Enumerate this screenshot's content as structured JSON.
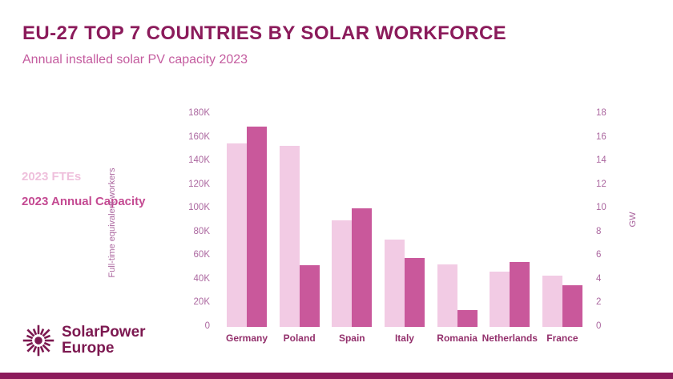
{
  "header": {
    "title": "EU-27 TOP 7 COUNTRIES BY SOLAR WORKFORCE",
    "subtitle": "Annual installed solar PV capacity 2023"
  },
  "legend": {
    "fte_label": "2023 FTEs",
    "capacity_label": "2023 Annual Capacity"
  },
  "logo": {
    "line1": "SolarPower",
    "line2": "Europe"
  },
  "colors": {
    "title": "#8B1B5B",
    "subtitle": "#C45C9F",
    "fte_bar": "#F2CBE4",
    "capacity_bar": "#C9589B",
    "axis_text": "#AC68A0",
    "category_text": "#93306C",
    "logo": "#7C1850",
    "footer_bar": "#8B1B5B",
    "background": "#FFFFFF"
  },
  "chart_data": {
    "type": "bar",
    "title": "EU-27 TOP 7 COUNTRIES BY SOLAR WORKFORCE",
    "subtitle": "Annual installed solar PV capacity 2023",
    "categories": [
      "Germany",
      "Poland",
      "Spain",
      "Italy",
      "Romania",
      "Netherlands",
      "France"
    ],
    "series": [
      {
        "name": "2023 FTEs",
        "axis": "left",
        "unit": "full-time equivalent workers",
        "values": [
          155000,
          153000,
          90000,
          74000,
          53000,
          46500,
          43000
        ]
      },
      {
        "name": "2023 Annual Capacity",
        "axis": "right",
        "unit": "GW",
        "values": [
          16.9,
          5.2,
          10.0,
          5.8,
          1.4,
          5.5,
          3.5
        ]
      }
    ],
    "left_axis": {
      "label": "Full-time equivalent workers",
      "min": 0,
      "max": 180000,
      "ticks": [
        "180K",
        "160K",
        "140K",
        "120K",
        "100K",
        "80K",
        "60K",
        "40K",
        "20K",
        "0"
      ]
    },
    "right_axis": {
      "label": "GW",
      "min": 0,
      "max": 18,
      "ticks": [
        "18",
        "16",
        "14",
        "12",
        "10",
        "8",
        "6",
        "4",
        "2",
        "0"
      ]
    },
    "grid": false,
    "legend_position": "left"
  }
}
